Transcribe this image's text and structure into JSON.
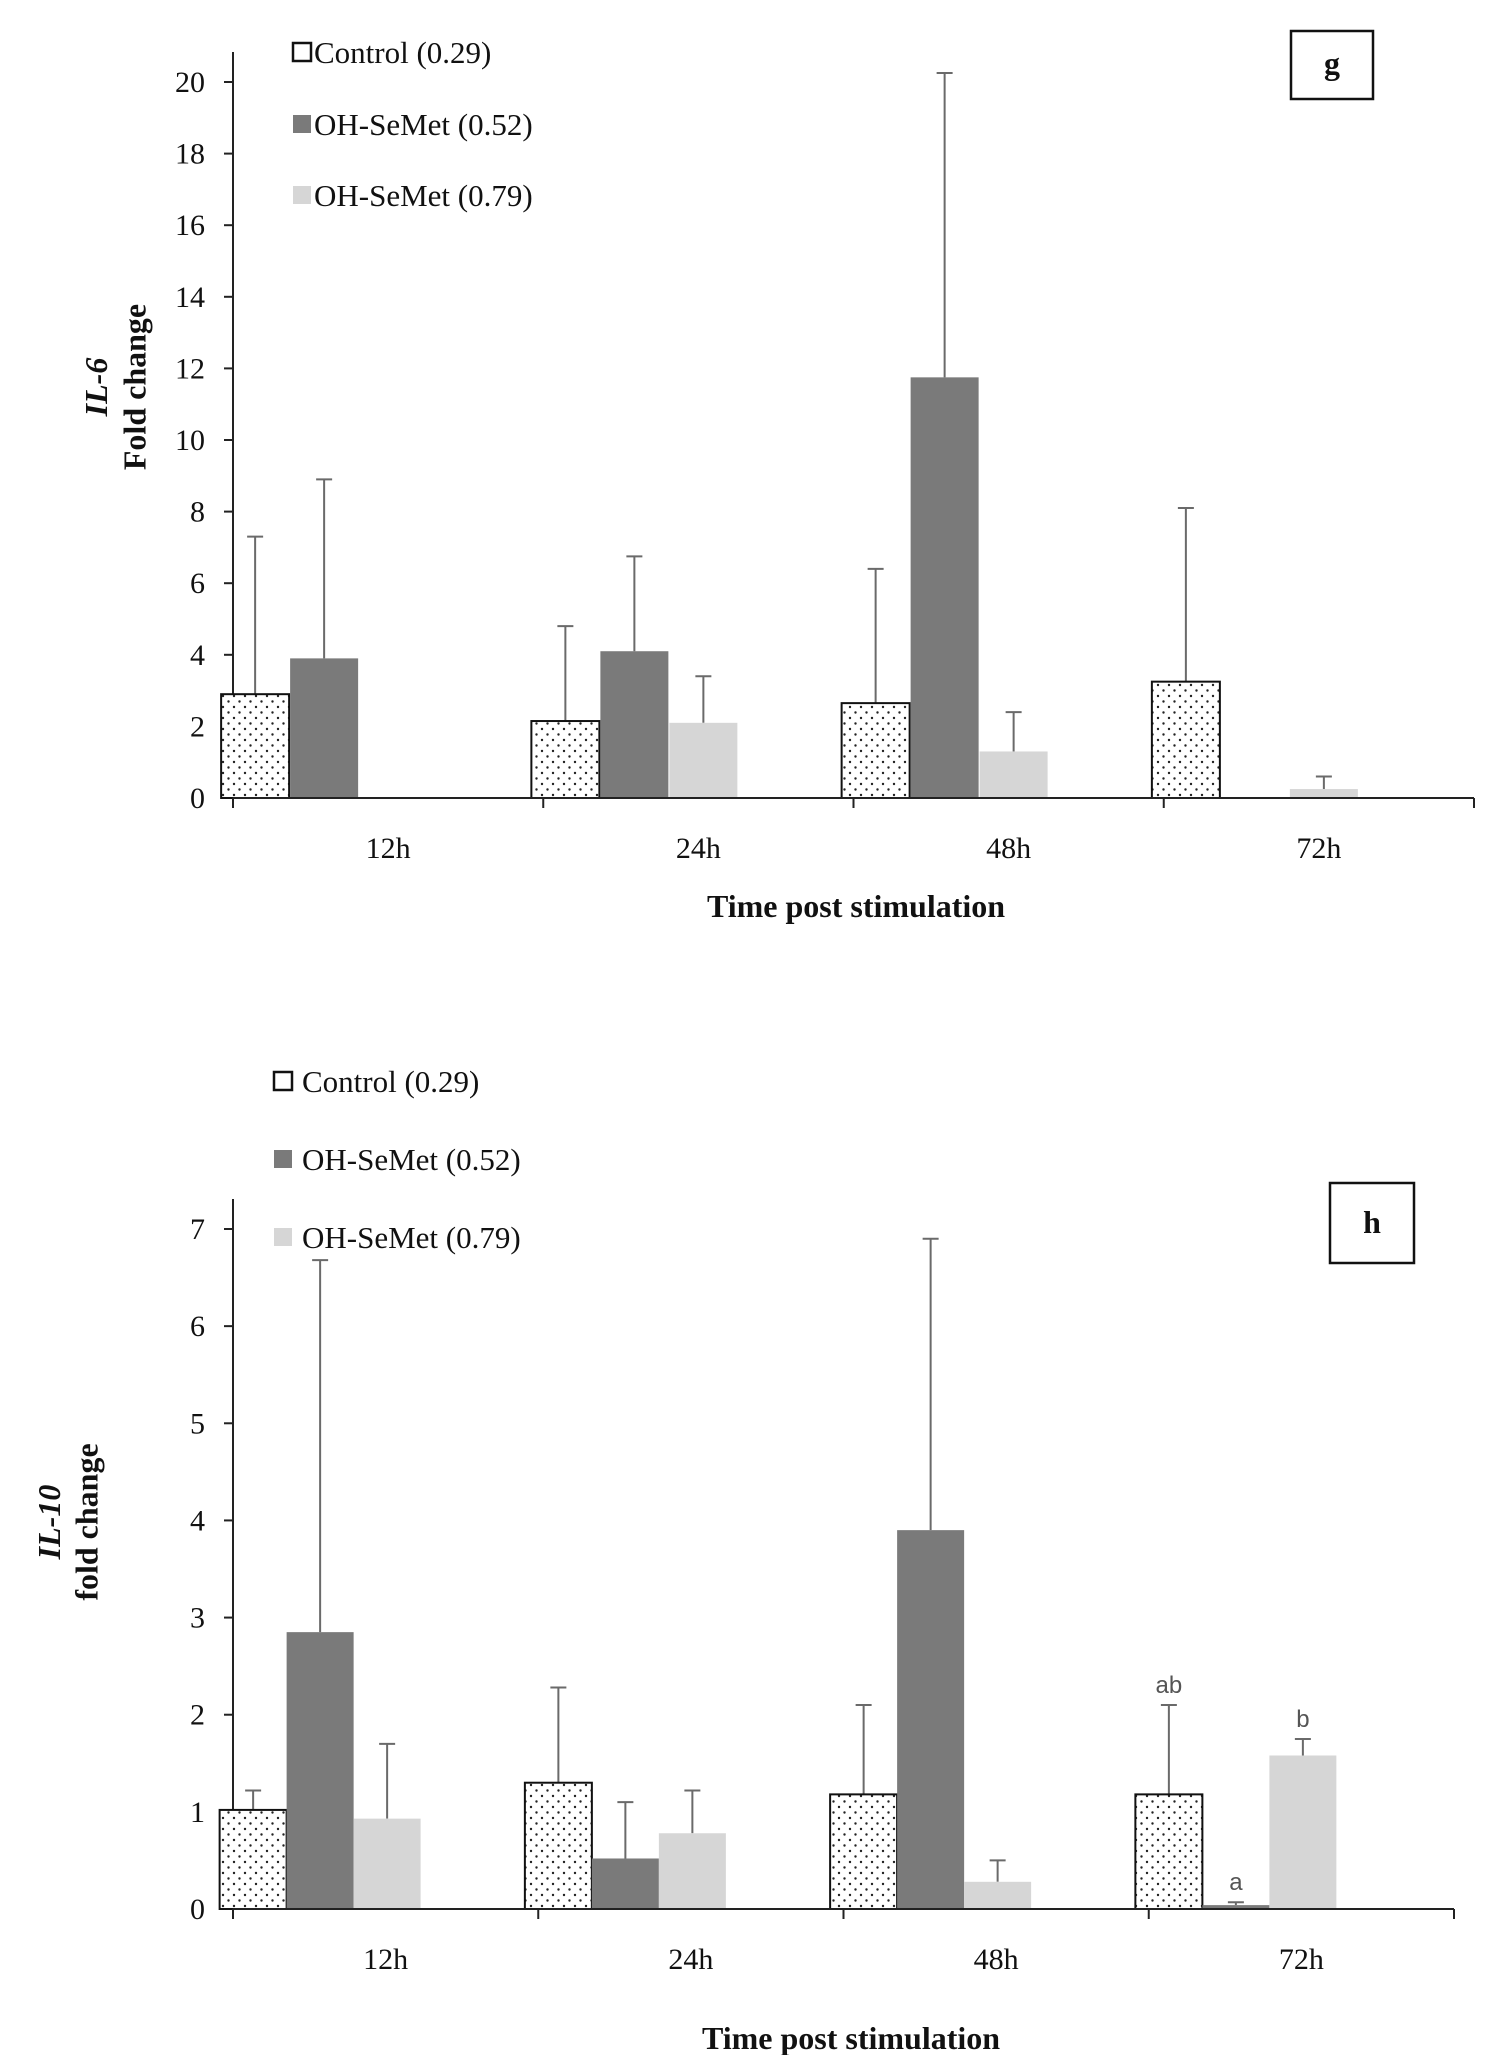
{
  "chart_data": [
    {
      "type": "bar",
      "panel_label": "g",
      "title": "",
      "xlabel": "Time post stimulation",
      "ylabel_gene": "IL-6",
      "ylabel": "Fold change",
      "ylim": [
        0,
        20
      ],
      "yticks": [
        "0",
        "2",
        "4",
        "6",
        "8",
        "10",
        "12",
        "14",
        "16",
        "18",
        "20"
      ],
      "categories": [
        "12h",
        "24h",
        "48h",
        "72h"
      ],
      "series": [
        {
          "name": "Control (0.29)",
          "style": "dotted",
          "values": [
            2.9,
            2.15,
            2.65,
            3.25
          ],
          "errors": [
            4.4,
            2.65,
            3.75,
            4.85
          ]
        },
        {
          "name": "OH-SeMet (0.52)",
          "style": "dark",
          "values": [
            3.9,
            4.1,
            11.75,
            0
          ],
          "errors": [
            5.0,
            2.65,
            8.5,
            0
          ]
        },
        {
          "name": "OH-SeMet (0.79)",
          "style": "light",
          "values": [
            0,
            2.1,
            1.3,
            0.25
          ],
          "errors": [
            0,
            1.3,
            1.1,
            0.35
          ]
        }
      ],
      "significance": [],
      "legend_position": "top-left"
    },
    {
      "type": "bar",
      "panel_label": "h",
      "title": "",
      "xlabel": "Time post stimulation",
      "ylabel_gene": "IL-10",
      "ylabel": "fold change",
      "ylim": [
        0,
        7
      ],
      "yticks": [
        "0",
        "1",
        "2",
        "3",
        "4",
        "5",
        "6",
        "7"
      ],
      "categories": [
        "12h",
        "24h",
        "48h",
        "72h"
      ],
      "series": [
        {
          "name": "Control (0.29)",
          "style": "dotted",
          "values": [
            1.02,
            1.3,
            1.18,
            1.18
          ],
          "errors": [
            0.2,
            0.98,
            0.92,
            0.92
          ]
        },
        {
          "name": "OH-SeMet (0.52)",
          "style": "dark",
          "values": [
            2.85,
            0.52,
            3.9,
            0.04
          ],
          "errors": [
            3.83,
            0.58,
            3.0,
            0.03
          ]
        },
        {
          "name": "OH-SeMet (0.79)",
          "style": "light",
          "values": [
            0.93,
            0.78,
            0.28,
            1.58
          ],
          "errors": [
            0.77,
            0.44,
            0.22,
            0.17
          ]
        }
      ],
      "significance": [
        {
          "category": 3,
          "series": 0,
          "label": "ab"
        },
        {
          "category": 3,
          "series": 1,
          "label": "a"
        },
        {
          "category": 3,
          "series": 2,
          "label": "b"
        }
      ],
      "legend_position": "top-left"
    }
  ],
  "colors": {
    "dark": "#7a7a7a",
    "light": "#d6d6d6",
    "control_fill": "#ffffff",
    "outline": "#111111",
    "error_bar": "#6a6a6a"
  }
}
